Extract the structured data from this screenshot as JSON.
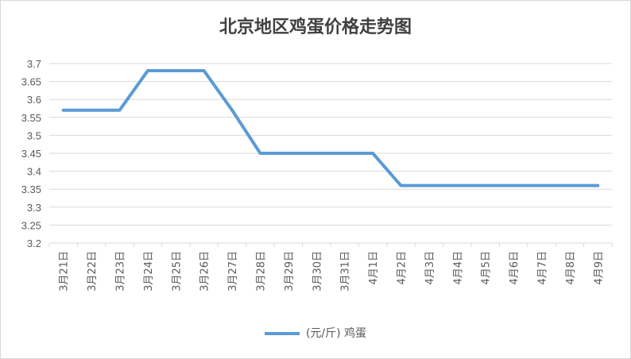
{
  "chart_data": {
    "type": "line",
    "title": "北京地区鸡蛋价格走势图",
    "categories": [
      "3月21日",
      "3月22日",
      "3月23日",
      "3月24日",
      "3月25日",
      "3月26日",
      "3月27日",
      "3月28日",
      "3月29日",
      "3月30日",
      "3月31日",
      "4月1日",
      "4月2日",
      "4月3日",
      "4月4日",
      "4月5日",
      "4月6日",
      "4月7日",
      "4月8日",
      "4月9日"
    ],
    "series": [
      {
        "name": "(元/斤) 鸡蛋",
        "color": "#5b9bd5",
        "values": [
          3.57,
          3.57,
          3.57,
          3.68,
          3.68,
          3.68,
          3.57,
          3.45,
          3.45,
          3.45,
          3.45,
          3.45,
          3.36,
          3.36,
          3.36,
          3.36,
          3.36,
          3.36,
          3.36,
          3.36
        ]
      }
    ],
    "ylim": [
      3.2,
      3.7
    ],
    "yticks": [
      "3.2",
      "3.25",
      "3.3",
      "3.35",
      "3.4",
      "3.45",
      "3.5",
      "3.55",
      "3.6",
      "3.65",
      "3.7"
    ],
    "grid": true,
    "legend_position": "bottom",
    "gridline_color": "#d9d9d9"
  }
}
